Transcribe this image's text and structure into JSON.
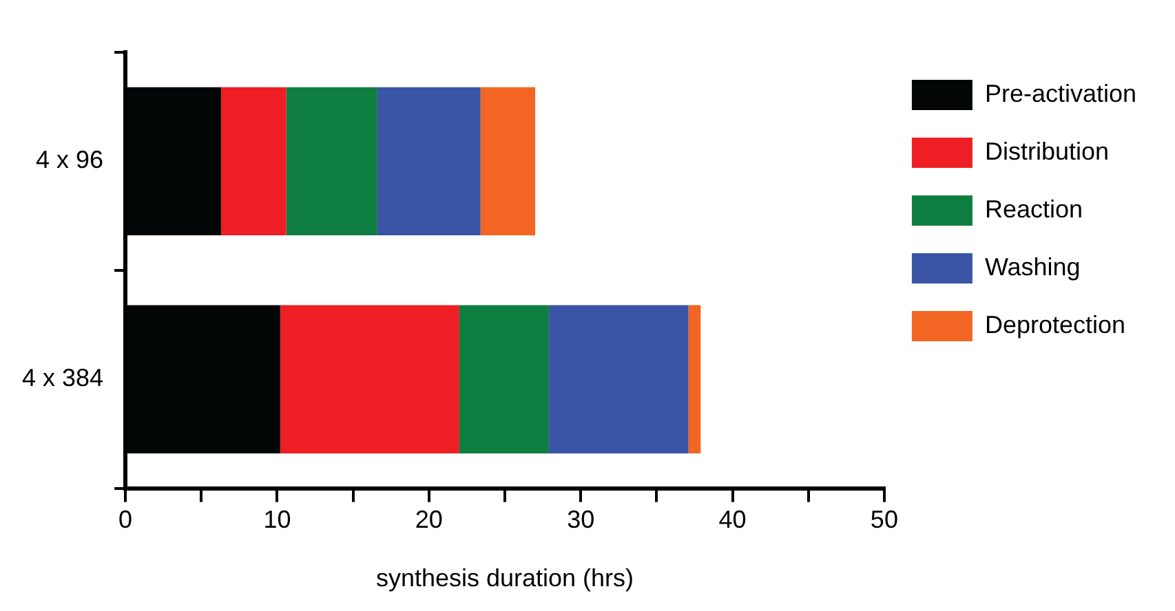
{
  "chart_data": {
    "type": "bar",
    "orientation": "horizontal",
    "stacked": true,
    "xlabel": "synthesis duration (hrs)",
    "categories": [
      "4 x 96",
      "4 x 384"
    ],
    "series": [
      {
        "name": "Pre-activation",
        "color": "#030607",
        "values": [
          6.3,
          10.2
        ]
      },
      {
        "name": "Distribution",
        "color": "#ed1f24",
        "values": [
          4.3,
          11.8
        ]
      },
      {
        "name": "Reaction",
        "color": "#0e7e40",
        "values": [
          6.0,
          5.9
        ]
      },
      {
        "name": "Washing",
        "color": "#3a55a5",
        "values": [
          6.8,
          9.2
        ]
      },
      {
        "name": "Deprotection",
        "color": "#f26522",
        "values": [
          3.6,
          0.8
        ]
      }
    ],
    "xlim": [
      0,
      50
    ],
    "xticks": [
      0,
      {
        "value": 5,
        "label": null
      },
      10,
      {
        "value": 15,
        "label": null
      },
      20,
      {
        "value": 25,
        "label": null
      },
      30,
      {
        "value": 35,
        "label": null
      },
      40,
      {
        "value": 45,
        "label": null
      },
      50
    ],
    "grid": false,
    "legend": "right"
  }
}
